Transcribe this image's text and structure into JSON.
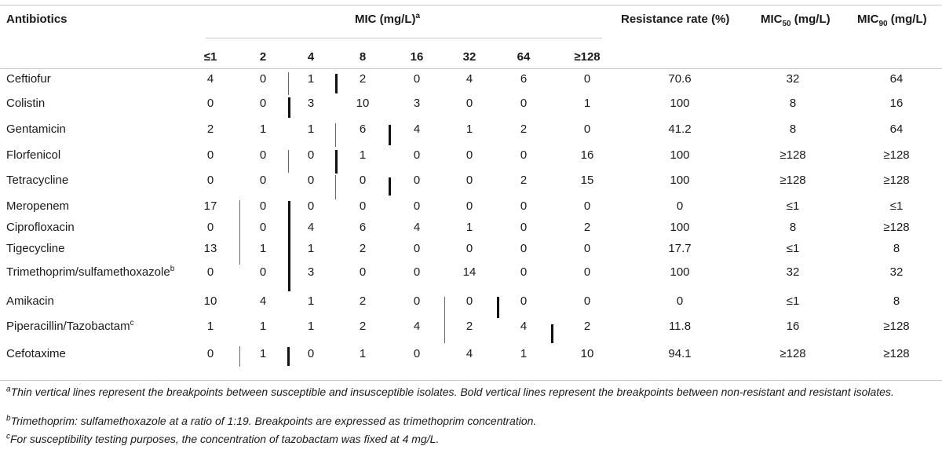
{
  "header": {
    "antibiotics": "Antibiotics",
    "mic_label": "MIC (mg/L)",
    "mic_sup": "a",
    "resistance": "Resistance rate (%)",
    "mic50_pre": "MIC",
    "mic50_sub": "50",
    "mic50_post": " (mg/L)",
    "mic90_pre": "MIC",
    "mic90_sub": "90",
    "mic90_post": " (mg/L)",
    "conc": [
      "≤1",
      "2",
      "4",
      "8",
      "16",
      "32",
      "64",
      "≥128"
    ]
  },
  "rows": [
    {
      "name": "Ceftiofur",
      "sup": "",
      "v": [
        "4",
        "0",
        "1",
        "2",
        "0",
        "4",
        "6",
        "0"
      ],
      "rr": "70.6",
      "m50": "32",
      "m90": "64"
    },
    {
      "name": "Colistin",
      "sup": "",
      "v": [
        "0",
        "0",
        "3",
        "10",
        "3",
        "0",
        "0",
        "1"
      ],
      "rr": "100",
      "m50": "8",
      "m90": "16"
    },
    {
      "name": "Gentamicin",
      "sup": "",
      "v": [
        "2",
        "1",
        "1",
        "6",
        "4",
        "1",
        "2",
        "0"
      ],
      "rr": "41.2",
      "m50": "8",
      "m90": "64"
    },
    {
      "name": "Florfenicol",
      "sup": "",
      "v": [
        "0",
        "0",
        "0",
        "1",
        "0",
        "0",
        "0",
        "16"
      ],
      "rr": "100",
      "m50": "≥128",
      "m90": "≥128"
    },
    {
      "name": "Tetracycline",
      "sup": "",
      "v": [
        "0",
        "0",
        "0",
        "0",
        "0",
        "0",
        "2",
        "15"
      ],
      "rr": "100",
      "m50": "≥128",
      "m90": "≥128"
    },
    {
      "name": "Meropenem",
      "sup": "",
      "v": [
        "17",
        "0",
        "0",
        "0",
        "0",
        "0",
        "0",
        "0"
      ],
      "rr": "0",
      "m50": "≤1",
      "m90": "≤1"
    },
    {
      "name": "Ciprofloxacin",
      "sup": "",
      "v": [
        "0",
        "0",
        "4",
        "6",
        "4",
        "1",
        "0",
        "2"
      ],
      "rr": "100",
      "m50": "8",
      "m90": "≥128"
    },
    {
      "name": "Tigecycline",
      "sup": "",
      "v": [
        "13",
        "1",
        "1",
        "2",
        "0",
        "0",
        "0",
        "0"
      ],
      "rr": "17.7",
      "m50": "≤1",
      "m90": "8"
    },
    {
      "name": "Trimethoprim/sulfamethoxazole",
      "sup": "b",
      "v": [
        "0",
        "0",
        "3",
        "0",
        "0",
        "14",
        "0",
        "0"
      ],
      "rr": "100",
      "m50": "32",
      "m90": "32"
    },
    {
      "name": "Amikacin",
      "sup": "",
      "v": [
        "10",
        "4",
        "1",
        "2",
        "0",
        "0",
        "0",
        "0"
      ],
      "rr": "0",
      "m50": "≤1",
      "m90": "8"
    },
    {
      "name": "Piperacillin/Tazobactam",
      "sup": "c",
      "v": [
        "1",
        "1",
        "1",
        "2",
        "4",
        "2",
        "4",
        "2"
      ],
      "rr": "11.8",
      "m50": "16",
      "m90": "≥128"
    },
    {
      "name": "Cefotaxime",
      "sup": "",
      "v": [
        "0",
        "1",
        "0",
        "1",
        "0",
        "4",
        "1",
        "10"
      ],
      "rr": "94.1",
      "m50": "≥128",
      "m90": "≥128"
    }
  ],
  "footnotes": [
    {
      "mark": "a",
      "text": "Thin vertical lines represent the breakpoints between susceptible and insusceptible isolates. Bold vertical lines represent the breakpoints between non-resistant and resistant isolates."
    },
    {
      "mark": "b",
      "text": "Trimethoprim: sulfamethoxazole at a ratio of 1:19. Breakpoints are expressed as trimethoprim concentration."
    },
    {
      "mark": "c",
      "text": "For susceptibility testing purposes, the concentration of tazobactam was fixed at 4 mg/L."
    }
  ]
}
